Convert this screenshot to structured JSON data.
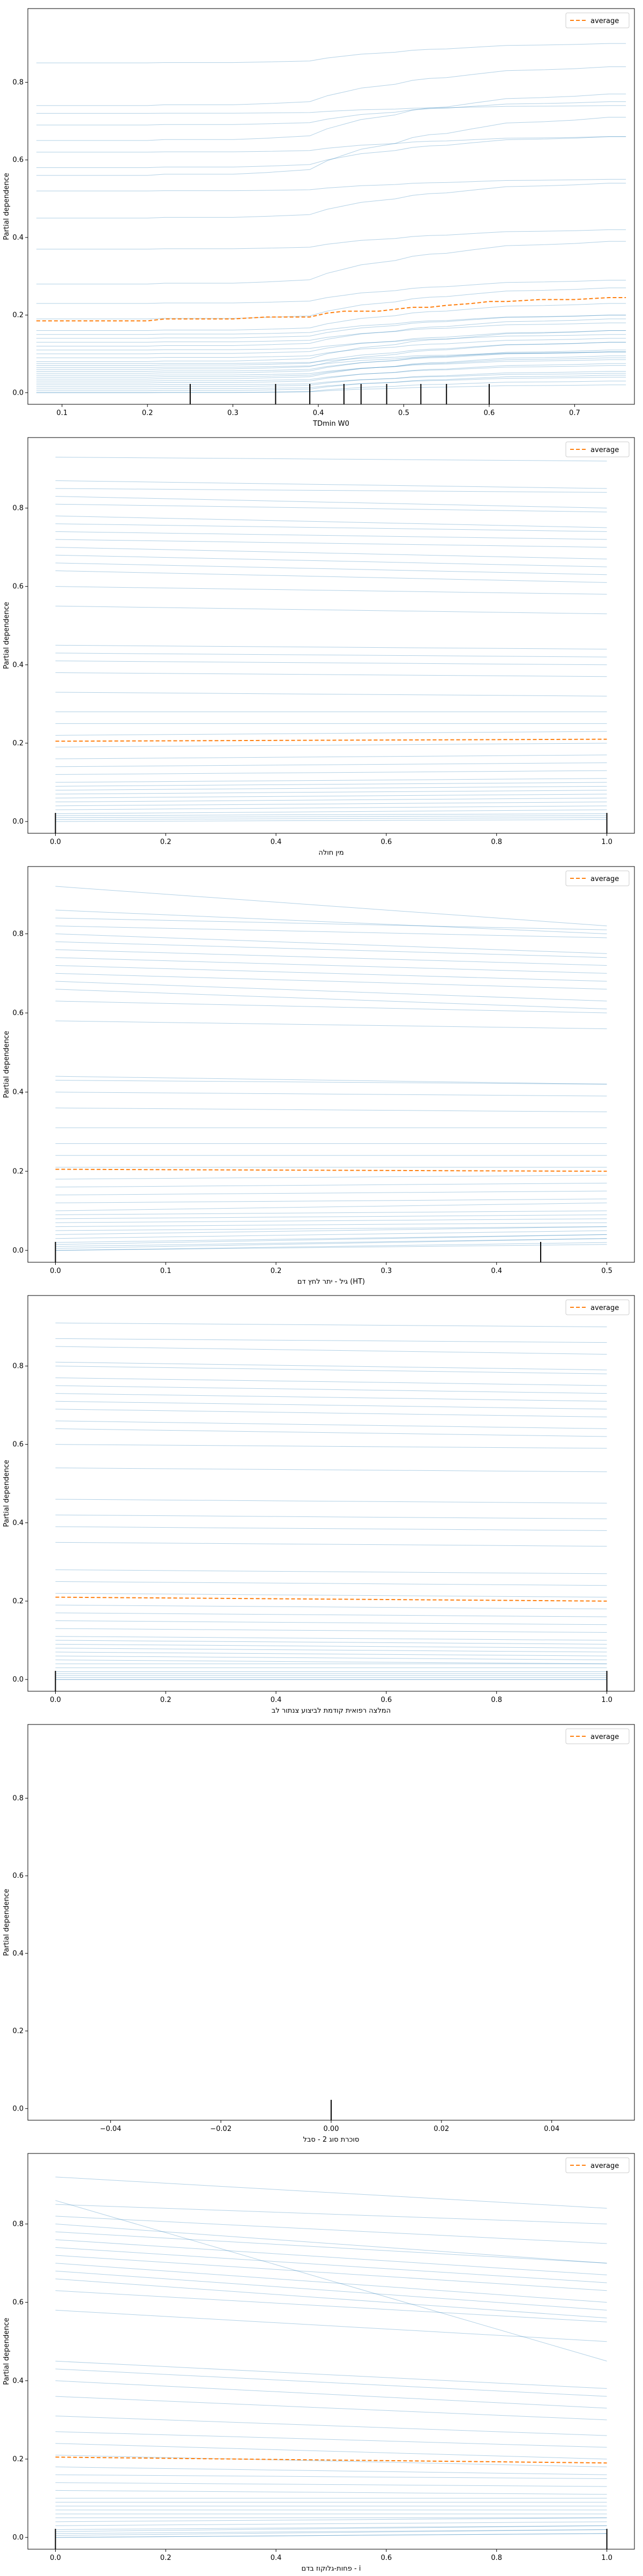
{
  "chart_data": [
    {
      "type": "line",
      "title": "",
      "xlabel": "TDmin W0",
      "ylabel": "Partial dependence",
      "xlim": [
        0.06,
        0.77
      ],
      "ylim": [
        -0.03,
        0.99
      ],
      "xticks": [
        "0.1",
        "0.2",
        "0.3",
        "0.4",
        "0.5",
        "0.6",
        "0.7"
      ],
      "xtick_values": [
        0.1,
        0.2,
        0.3,
        0.4,
        0.5,
        0.6,
        0.7
      ],
      "yticks": [
        "0.0",
        "0.2",
        "0.4",
        "0.6",
        "0.8"
      ],
      "ytick_values": [
        0,
        0.2,
        0.4,
        0.6,
        0.8
      ],
      "legend": {
        "label": "average",
        "placement": "top-right"
      },
      "average": {
        "x": [
          0.07,
          0.2,
          0.22,
          0.3,
          0.34,
          0.39,
          0.41,
          0.43,
          0.45,
          0.47,
          0.49,
          0.51,
          0.53,
          0.55,
          0.58,
          0.6,
          0.62,
          0.66,
          0.7,
          0.74,
          0.76
        ],
        "y": [
          0.185,
          0.185,
          0.19,
          0.19,
          0.195,
          0.195,
          0.205,
          0.21,
          0.21,
          0.21,
          0.215,
          0.22,
          0.22,
          0.225,
          0.23,
          0.235,
          0.235,
          0.24,
          0.24,
          0.245,
          0.245
        ]
      },
      "ice_x": [
        0.07,
        0.2,
        0.22,
        0.3,
        0.34,
        0.39,
        0.41,
        0.43,
        0.45,
        0.47,
        0.49,
        0.51,
        0.53,
        0.55,
        0.58,
        0.6,
        0.62,
        0.66,
        0.7,
        0.74,
        0.76
      ],
      "ice_pattern": [
        0,
        0,
        0.02,
        0.02,
        0.05,
        0.1,
        0.25,
        0.35,
        0.45,
        0.5,
        0.55,
        0.65,
        0.7,
        0.72,
        0.8,
        0.85,
        0.9,
        0.92,
        0.95,
        1,
        1
      ],
      "ice_base": [
        0.85,
        0.74,
        0.72,
        0.69,
        0.65,
        0.62,
        0.58,
        0.56,
        0.52,
        0.45,
        0.37,
        0.28,
        0.23,
        0.19,
        0.16,
        0.15,
        0.14,
        0.13,
        0.12,
        0.11,
        0.1,
        0.09,
        0.08,
        0.075,
        0.07,
        0.065,
        0.06,
        0.055,
        0.05,
        0.045,
        0.04,
        0.035,
        0.03,
        0.025,
        0.02,
        0.015,
        0.01,
        0.005,
        0.0,
        0.0
      ],
      "ice_delta": [
        0.05,
        0.1,
        0.02,
        0.06,
        0.12,
        0.04,
        0.08,
        0.15,
        0.03,
        0.09,
        0.05,
        0.11,
        0.06,
        0.08,
        0.07,
        0.05,
        0.06,
        0.05,
        0.07,
        0.04,
        0.06,
        0.05,
        0.08,
        0.03,
        0.06,
        0.04,
        0.07,
        0.05,
        0.06,
        0.04,
        0.05,
        0.06,
        0.04,
        0.05,
        0.03,
        0.04,
        0.03,
        0.04,
        0.02,
        0.03
      ],
      "rug": [
        0.25,
        0.35,
        0.39,
        0.43,
        0.45,
        0.48,
        0.52,
        0.55,
        0.6
      ]
    },
    {
      "type": "line",
      "title": "",
      "xlabel": "מין חולה",
      "ylabel": "Partial dependence",
      "xlim": [
        -0.05,
        1.05
      ],
      "ylim": [
        -0.03,
        0.98
      ],
      "xticks": [
        "0.0",
        "0.2",
        "0.4",
        "0.6",
        "0.8",
        "1.0"
      ],
      "xtick_values": [
        0,
        0.2,
        0.4,
        0.6,
        0.8,
        1.0
      ],
      "yticks": [
        "0.0",
        "0.2",
        "0.4",
        "0.6",
        "0.8"
      ],
      "ytick_values": [
        0,
        0.2,
        0.4,
        0.6,
        0.8
      ],
      "legend": {
        "label": "average",
        "placement": "top-right"
      },
      "average": {
        "x": [
          0,
          1
        ],
        "y": [
          0.205,
          0.21
        ]
      },
      "ice_start": [
        0.93,
        0.87,
        0.85,
        0.83,
        0.81,
        0.78,
        0.76,
        0.74,
        0.72,
        0.7,
        0.68,
        0.66,
        0.64,
        0.6,
        0.55,
        0.45,
        0.43,
        0.41,
        0.38,
        0.33,
        0.28,
        0.25,
        0.22,
        0.19,
        0.16,
        0.14,
        0.12,
        0.1,
        0.09,
        0.08,
        0.07,
        0.06,
        0.05,
        0.04,
        0.03,
        0.02,
        0.015,
        0.01,
        0.005,
        0.0
      ],
      "ice_end": [
        0.92,
        0.85,
        0.84,
        0.8,
        0.79,
        0.75,
        0.74,
        0.72,
        0.7,
        0.67,
        0.65,
        0.63,
        0.61,
        0.58,
        0.53,
        0.44,
        0.42,
        0.4,
        0.37,
        0.32,
        0.28,
        0.25,
        0.23,
        0.2,
        0.17,
        0.15,
        0.13,
        0.11,
        0.1,
        0.09,
        0.08,
        0.07,
        0.06,
        0.05,
        0.04,
        0.03,
        0.02,
        0.015,
        0.01,
        0.005
      ],
      "rug": [
        0,
        1
      ]
    },
    {
      "type": "line",
      "title": "",
      "xlabel": "גיל - יתר לחץ דם (HT)",
      "ylabel": "Partial dependence",
      "xlim": [
        -0.025,
        0.525
      ],
      "ylim": [
        -0.03,
        0.97
      ],
      "xticks": [
        "0.0",
        "0.1",
        "0.2",
        "0.3",
        "0.4",
        "0.5"
      ],
      "xtick_values": [
        0,
        0.1,
        0.2,
        0.3,
        0.4,
        0.5
      ],
      "yticks": [
        "0.0",
        "0.2",
        "0.4",
        "0.6",
        "0.8"
      ],
      "ytick_values": [
        0,
        0.2,
        0.4,
        0.6,
        0.8
      ],
      "legend": {
        "label": "average",
        "placement": "top-right"
      },
      "average": {
        "x": [
          0,
          0.5
        ],
        "y": [
          0.205,
          0.2
        ]
      },
      "ice_start": [
        0.92,
        0.86,
        0.84,
        0.82,
        0.8,
        0.78,
        0.76,
        0.74,
        0.72,
        0.7,
        0.68,
        0.66,
        0.63,
        0.58,
        0.44,
        0.43,
        0.4,
        0.36,
        0.31,
        0.27,
        0.24,
        0.21,
        0.18,
        0.16,
        0.14,
        0.12,
        0.1,
        0.09,
        0.08,
        0.07,
        0.06,
        0.05,
        0.04,
        0.03,
        0.02,
        0.015,
        0.01,
        0.005,
        0.0,
        0.0
      ],
      "ice_end": [
        0.82,
        0.8,
        0.81,
        0.79,
        0.75,
        0.74,
        0.72,
        0.7,
        0.68,
        0.66,
        0.63,
        0.61,
        0.6,
        0.56,
        0.42,
        0.42,
        0.39,
        0.35,
        0.31,
        0.27,
        0.24,
        0.21,
        0.19,
        0.17,
        0.15,
        0.13,
        0.12,
        0.1,
        0.09,
        0.08,
        0.07,
        0.06,
        0.06,
        0.05,
        0.04,
        0.04,
        0.03,
        0.03,
        0.02,
        0.015
      ],
      "rug": [
        0,
        0.44
      ]
    },
    {
      "type": "line",
      "title": "",
      "xlabel": "המלצה רפואית קודמת לביצוע צנתור לב",
      "ylabel": "Partial dependence",
      "xlim": [
        -0.05,
        1.05
      ],
      "ylim": [
        -0.03,
        0.98
      ],
      "xticks": [
        "0.0",
        "0.2",
        "0.4",
        "0.6",
        "0.8",
        "1.0"
      ],
      "xtick_values": [
        0,
        0.2,
        0.4,
        0.6,
        0.8,
        1.0
      ],
      "yticks": [
        "0.0",
        "0.2",
        "0.4",
        "0.6",
        "0.8"
      ],
      "ytick_values": [
        0,
        0.2,
        0.4,
        0.6,
        0.8
      ],
      "legend": {
        "label": "average",
        "placement": "top-right"
      },
      "average": {
        "x": [
          0,
          1
        ],
        "y": [
          0.21,
          0.2
        ]
      },
      "ice_start": [
        0.91,
        0.87,
        0.85,
        0.81,
        0.8,
        0.77,
        0.75,
        0.73,
        0.71,
        0.69,
        0.66,
        0.64,
        0.6,
        0.54,
        0.46,
        0.42,
        0.39,
        0.35,
        0.28,
        0.25,
        0.22,
        0.19,
        0.17,
        0.15,
        0.13,
        0.11,
        0.1,
        0.09,
        0.08,
        0.07,
        0.06,
        0.05,
        0.04,
        0.03,
        0.02,
        0.015,
        0.01,
        0.005,
        0.0,
        0.0
      ],
      "ice_end": [
        0.9,
        0.86,
        0.83,
        0.79,
        0.78,
        0.75,
        0.73,
        0.71,
        0.69,
        0.67,
        0.64,
        0.62,
        0.59,
        0.53,
        0.45,
        0.41,
        0.38,
        0.34,
        0.27,
        0.24,
        0.21,
        0.18,
        0.16,
        0.14,
        0.12,
        0.1,
        0.09,
        0.08,
        0.07,
        0.06,
        0.05,
        0.04,
        0.04,
        0.03,
        0.02,
        0.015,
        0.01,
        0.005,
        0.0,
        0.0
      ],
      "rug": [
        0,
        1
      ]
    },
    {
      "type": "line",
      "title": "",
      "xlabel": "סוכרת סוג 2 - סבל",
      "ylabel": "Partial dependence",
      "xlim": [
        -0.055,
        0.055
      ],
      "ylim": [
        -0.03,
        0.99
      ],
      "xticks": [
        "−0.04",
        "−0.02",
        "0.00",
        "0.02",
        "0.04"
      ],
      "xtick_values": [
        -0.04,
        -0.02,
        0,
        0.02,
        0.04
      ],
      "yticks": [
        "0.0",
        "0.2",
        "0.4",
        "0.6",
        "0.8"
      ],
      "ytick_values": [
        0,
        0.2,
        0.4,
        0.6,
        0.8
      ],
      "legend": {
        "label": "average",
        "placement": "top-right"
      },
      "rug": [
        0
      ]
    },
    {
      "type": "line",
      "title": "",
      "xlabel": "פחות-גלוקוז בדם - i",
      "ylabel": "Partial dependence",
      "xlim": [
        -0.05,
        1.05
      ],
      "ylim": [
        -0.03,
        0.98
      ],
      "xticks": [
        "0.0",
        "0.2",
        "0.4",
        "0.6",
        "0.8",
        "1.0"
      ],
      "xtick_values": [
        0,
        0.2,
        0.4,
        0.6,
        0.8,
        1.0
      ],
      "yticks": [
        "0.0",
        "0.2",
        "0.4",
        "0.6",
        "0.8"
      ],
      "ytick_values": [
        0,
        0.2,
        0.4,
        0.6,
        0.8
      ],
      "legend": {
        "label": "average",
        "placement": "top-right"
      },
      "average": {
        "x": [
          0,
          1
        ],
        "y": [
          0.205,
          0.19
        ]
      },
      "ice_start": [
        0.92,
        0.86,
        0.85,
        0.82,
        0.8,
        0.78,
        0.76,
        0.74,
        0.72,
        0.7,
        0.68,
        0.66,
        0.63,
        0.58,
        0.45,
        0.43,
        0.4,
        0.36,
        0.31,
        0.27,
        0.24,
        0.21,
        0.18,
        0.16,
        0.14,
        0.12,
        0.1,
        0.09,
        0.08,
        0.07,
        0.06,
        0.05,
        0.04,
        0.03,
        0.02,
        0.015,
        0.01,
        0.005,
        0.0,
        0.0
      ],
      "ice_end": [
        0.84,
        0.45,
        0.8,
        0.75,
        0.7,
        0.7,
        0.67,
        0.65,
        0.63,
        0.6,
        0.58,
        0.56,
        0.55,
        0.5,
        0.38,
        0.36,
        0.33,
        0.3,
        0.26,
        0.23,
        0.2,
        0.18,
        0.16,
        0.15,
        0.13,
        0.11,
        0.1,
        0.09,
        0.08,
        0.07,
        0.06,
        0.05,
        0.05,
        0.04,
        0.03,
        0.03,
        0.02,
        0.02,
        0.01,
        0.01
      ],
      "rug": [
        0,
        1
      ]
    }
  ]
}
